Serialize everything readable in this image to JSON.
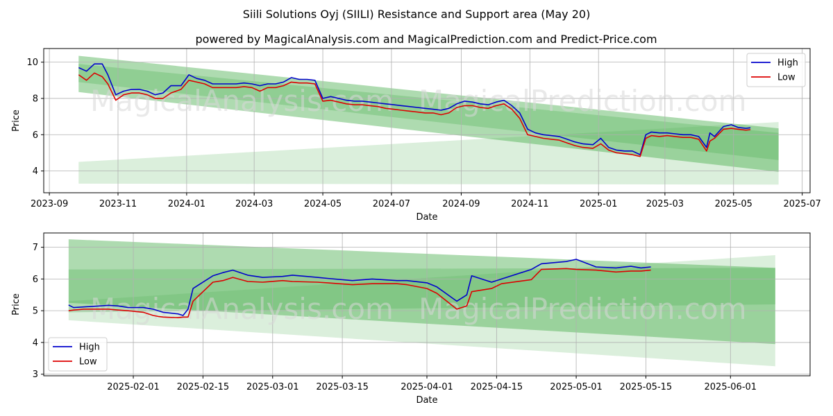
{
  "title": "Siili Solutions Oyj (SIILI) Resistance and Support area (May 20)",
  "subtitle": "powered by MagicalAnalysis.com and MagicalPrediction.com and Predict-Price.com",
  "watermarks": [
    "MagicalAnalysis.com",
    "MagicalPrediction.com"
  ],
  "colors": {
    "high": "#0000cc",
    "low": "#dd0000",
    "band": "#4caf50",
    "grid": "#b0b0b0"
  },
  "chart_data": [
    {
      "type": "line",
      "xlabel": "Date",
      "ylabel": "Price",
      "xlim": [
        "2023-08-27",
        "2025-07-08"
      ],
      "ylim": [
        2.8,
        10.75
      ],
      "xticks": [
        "2023-09",
        "2023-11",
        "2024-01",
        "2024-03",
        "2024-05",
        "2024-07",
        "2024-09",
        "2024-11",
        "2025-01",
        "2025-03",
        "2025-05",
        "2025-07"
      ],
      "yticks": [
        4,
        6,
        8,
        10
      ],
      "grid": true,
      "legend": "top-right",
      "bands": [
        {
          "x": [
            "2023-09-27",
            "2025-06-10"
          ],
          "upper": [
            10.35,
            6.35
          ],
          "lower": [
            8.35,
            3.95
          ],
          "opacity": 0.45
        },
        {
          "x": [
            "2023-09-27",
            "2025-06-10"
          ],
          "upper": [
            9.9,
            6.1
          ],
          "lower": [
            8.9,
            4.6
          ],
          "opacity": 0.3
        },
        {
          "x": [
            "2023-09-27",
            "2025-06-10"
          ],
          "upper": [
            4.5,
            6.7
          ],
          "lower": [
            3.3,
            3.25
          ],
          "opacity": 0.2
        }
      ],
      "series": [
        {
          "name": "High",
          "x": [
            "2023-09-27",
            "2023-10-04",
            "2023-10-11",
            "2023-10-18",
            "2023-10-23",
            "2023-10-30",
            "2023-11-06",
            "2023-11-13",
            "2023-11-20",
            "2023-11-27",
            "2023-12-04",
            "2023-12-11",
            "2023-12-18",
            "2023-12-27",
            "2024-01-03",
            "2024-01-10",
            "2024-01-17",
            "2024-01-24",
            "2024-01-31",
            "2024-02-07",
            "2024-02-14",
            "2024-02-21",
            "2024-02-28",
            "2024-03-06",
            "2024-03-13",
            "2024-03-20",
            "2024-03-27",
            "2024-04-03",
            "2024-04-10",
            "2024-04-17",
            "2024-04-24",
            "2024-05-01",
            "2024-05-08",
            "2024-05-15",
            "2024-05-22",
            "2024-05-29",
            "2024-06-05",
            "2024-06-12",
            "2024-06-19",
            "2024-06-26",
            "2024-07-03",
            "2024-07-10",
            "2024-07-17",
            "2024-07-24",
            "2024-07-31",
            "2024-08-07",
            "2024-08-14",
            "2024-08-21",
            "2024-08-28",
            "2024-09-04",
            "2024-09-11",
            "2024-09-18",
            "2024-09-25",
            "2024-10-02",
            "2024-10-09",
            "2024-10-16",
            "2024-10-23",
            "2024-10-30",
            "2024-11-06",
            "2024-11-13",
            "2024-11-20",
            "2024-11-27",
            "2024-12-04",
            "2024-12-11",
            "2024-12-18",
            "2024-12-27",
            "2025-01-03",
            "2025-01-10",
            "2025-01-17",
            "2025-01-24",
            "2025-01-31",
            "2025-02-07",
            "2025-02-12",
            "2025-02-17",
            "2025-02-24",
            "2025-03-03",
            "2025-03-10",
            "2025-03-17",
            "2025-03-24",
            "2025-03-31",
            "2025-04-07",
            "2025-04-10",
            "2025-04-14",
            "2025-04-22",
            "2025-04-29",
            "2025-05-05",
            "2025-05-12",
            "2025-05-16"
          ],
          "values": [
            9.7,
            9.5,
            9.9,
            9.9,
            9.3,
            8.2,
            8.4,
            8.5,
            8.5,
            8.4,
            8.2,
            8.3,
            8.7,
            8.7,
            9.3,
            9.1,
            9.0,
            8.8,
            8.8,
            8.8,
            8.8,
            8.85,
            8.8,
            8.7,
            8.8,
            8.8,
            8.9,
            9.15,
            9.05,
            9.05,
            9.0,
            8.0,
            8.1,
            8.0,
            7.9,
            7.85,
            7.85,
            7.8,
            7.75,
            7.7,
            7.65,
            7.6,
            7.55,
            7.5,
            7.45,
            7.4,
            7.35,
            7.45,
            7.7,
            7.85,
            7.8,
            7.7,
            7.65,
            7.8,
            7.9,
            7.6,
            7.2,
            6.3,
            6.1,
            6.0,
            5.95,
            5.9,
            5.75,
            5.6,
            5.5,
            5.45,
            5.8,
            5.3,
            5.15,
            5.1,
            5.1,
            4.9,
            6.0,
            6.15,
            6.1,
            6.1,
            6.05,
            6.0,
            6.0,
            5.9,
            5.3,
            6.1,
            5.9,
            6.45,
            6.55,
            6.4,
            6.35,
            6.38
          ]
        },
        {
          "name": "Low",
          "x": [
            "2023-09-27",
            "2023-10-04",
            "2023-10-11",
            "2023-10-18",
            "2023-10-23",
            "2023-10-30",
            "2023-11-06",
            "2023-11-13",
            "2023-11-20",
            "2023-11-27",
            "2023-12-04",
            "2023-12-11",
            "2023-12-18",
            "2023-12-27",
            "2024-01-03",
            "2024-01-10",
            "2024-01-17",
            "2024-01-24",
            "2024-01-31",
            "2024-02-07",
            "2024-02-14",
            "2024-02-21",
            "2024-02-28",
            "2024-03-06",
            "2024-03-13",
            "2024-03-20",
            "2024-03-27",
            "2024-04-03",
            "2024-04-10",
            "2024-04-17",
            "2024-04-24",
            "2024-05-01",
            "2024-05-08",
            "2024-05-15",
            "2024-05-22",
            "2024-05-29",
            "2024-06-05",
            "2024-06-12",
            "2024-06-19",
            "2024-06-26",
            "2024-07-03",
            "2024-07-10",
            "2024-07-17",
            "2024-07-24",
            "2024-07-31",
            "2024-08-07",
            "2024-08-14",
            "2024-08-21",
            "2024-08-28",
            "2024-09-04",
            "2024-09-11",
            "2024-09-18",
            "2024-09-25",
            "2024-10-02",
            "2024-10-09",
            "2024-10-16",
            "2024-10-23",
            "2024-10-30",
            "2024-11-06",
            "2024-11-13",
            "2024-11-20",
            "2024-11-27",
            "2024-12-04",
            "2024-12-11",
            "2024-12-18",
            "2024-12-27",
            "2025-01-03",
            "2025-01-10",
            "2025-01-17",
            "2025-01-24",
            "2025-01-31",
            "2025-02-07",
            "2025-02-12",
            "2025-02-17",
            "2025-02-24",
            "2025-03-03",
            "2025-03-10",
            "2025-03-17",
            "2025-03-24",
            "2025-03-31",
            "2025-04-07",
            "2025-04-10",
            "2025-04-14",
            "2025-04-22",
            "2025-04-29",
            "2025-05-05",
            "2025-05-12",
            "2025-05-16"
          ],
          "values": [
            9.3,
            9.0,
            9.4,
            9.2,
            8.8,
            7.9,
            8.2,
            8.3,
            8.3,
            8.2,
            8.0,
            8.0,
            8.3,
            8.5,
            9.0,
            8.9,
            8.8,
            8.6,
            8.6,
            8.6,
            8.6,
            8.65,
            8.6,
            8.4,
            8.6,
            8.6,
            8.7,
            8.9,
            8.85,
            8.85,
            8.8,
            7.85,
            7.9,
            7.8,
            7.7,
            7.65,
            7.65,
            7.6,
            7.55,
            7.45,
            7.4,
            7.35,
            7.3,
            7.25,
            7.2,
            7.2,
            7.1,
            7.2,
            7.5,
            7.6,
            7.6,
            7.5,
            7.45,
            7.6,
            7.7,
            7.4,
            6.9,
            6.0,
            5.9,
            5.8,
            5.75,
            5.7,
            5.55,
            5.4,
            5.3,
            5.25,
            5.5,
            5.15,
            5.0,
            4.95,
            4.9,
            4.8,
            5.8,
            5.95,
            5.9,
            5.95,
            5.9,
            5.85,
            5.85,
            5.75,
            5.1,
            5.65,
            5.8,
            6.3,
            6.35,
            6.3,
            6.25,
            6.28
          ]
        }
      ]
    },
    {
      "type": "line",
      "xlabel": "Date",
      "ylabel": "Price",
      "xlim": [
        "2025-01-14",
        "2025-06-17"
      ],
      "ylim": [
        2.95,
        7.45
      ],
      "xticks": [
        "2025-02-01",
        "2025-02-15",
        "2025-03-01",
        "2025-03-15",
        "2025-04-01",
        "2025-04-15",
        "2025-05-01",
        "2025-05-15",
        "2025-06-01"
      ],
      "yticks": [
        3,
        4,
        5,
        6,
        7
      ],
      "grid": true,
      "legend": "bottom-left",
      "bands": [
        {
          "x": [
            "2025-01-19",
            "2025-06-10"
          ],
          "upper": [
            7.25,
            6.35
          ],
          "lower": [
            5.25,
            3.95
          ],
          "opacity": 0.45
        },
        {
          "x": [
            "2025-01-19",
            "2025-06-10"
          ],
          "upper": [
            6.3,
            6.35
          ],
          "lower": [
            4.95,
            5.2
          ],
          "opacity": 0.3
        },
        {
          "x": [
            "2025-01-19",
            "2025-06-10"
          ],
          "upper": [
            5.3,
            6.75
          ],
          "lower": [
            4.7,
            3.25
          ],
          "opacity": 0.2
        }
      ],
      "series": [
        {
          "name": "High",
          "x": [
            "2025-01-19",
            "2025-01-20",
            "2025-01-22",
            "2025-01-27",
            "2025-01-29",
            "2025-01-31",
            "2025-02-03",
            "2025-02-05",
            "2025-02-06",
            "2025-02-07",
            "2025-02-10",
            "2025-02-11",
            "2025-02-12",
            "2025-02-13",
            "2025-02-17",
            "2025-02-19",
            "2025-02-21",
            "2025-02-24",
            "2025-02-27",
            "2025-03-03",
            "2025-03-05",
            "2025-03-10",
            "2025-03-12",
            "2025-03-17",
            "2025-03-21",
            "2025-03-26",
            "2025-03-28",
            "2025-04-01",
            "2025-04-03",
            "2025-04-07",
            "2025-04-09",
            "2025-04-10",
            "2025-04-14",
            "2025-04-16",
            "2025-04-22",
            "2025-04-24",
            "2025-04-29",
            "2025-05-01",
            "2025-05-05",
            "2025-05-09",
            "2025-05-12",
            "2025-05-14",
            "2025-05-16"
          ],
          "values": [
            5.18,
            5.1,
            5.12,
            5.17,
            5.15,
            5.1,
            5.1,
            5.05,
            5.0,
            4.95,
            4.9,
            4.85,
            5.05,
            5.7,
            6.1,
            6.2,
            6.28,
            6.12,
            6.05,
            6.08,
            6.12,
            6.05,
            6.02,
            5.95,
            6.0,
            5.95,
            5.95,
            5.88,
            5.75,
            5.3,
            5.5,
            6.1,
            5.9,
            6.0,
            6.3,
            6.48,
            6.55,
            6.62,
            6.38,
            6.35,
            6.4,
            6.35,
            6.38
          ]
        },
        {
          "name": "Low",
          "x": [
            "2025-01-19",
            "2025-01-20",
            "2025-01-22",
            "2025-01-27",
            "2025-01-29",
            "2025-01-31",
            "2025-02-03",
            "2025-02-05",
            "2025-02-06",
            "2025-02-07",
            "2025-02-10",
            "2025-02-11",
            "2025-02-12",
            "2025-02-13",
            "2025-02-17",
            "2025-02-19",
            "2025-02-21",
            "2025-02-24",
            "2025-02-27",
            "2025-03-03",
            "2025-03-05",
            "2025-03-10",
            "2025-03-12",
            "2025-03-17",
            "2025-03-21",
            "2025-03-26",
            "2025-03-28",
            "2025-04-01",
            "2025-04-03",
            "2025-04-07",
            "2025-04-09",
            "2025-04-10",
            "2025-04-14",
            "2025-04-16",
            "2025-04-22",
            "2025-04-24",
            "2025-04-29",
            "2025-05-01",
            "2025-05-05",
            "2025-05-09",
            "2025-05-12",
            "2025-05-14",
            "2025-05-16"
          ],
          "values": [
            5.0,
            5.02,
            5.05,
            5.05,
            5.02,
            5.0,
            4.95,
            4.85,
            4.82,
            4.8,
            4.78,
            4.8,
            4.8,
            5.3,
            5.9,
            5.95,
            6.05,
            5.92,
            5.9,
            5.95,
            5.92,
            5.9,
            5.88,
            5.82,
            5.85,
            5.85,
            5.82,
            5.7,
            5.55,
            5.05,
            5.15,
            5.6,
            5.7,
            5.85,
            5.98,
            6.3,
            6.33,
            6.3,
            6.28,
            6.22,
            6.25,
            6.25,
            6.28
          ]
        }
      ]
    }
  ]
}
